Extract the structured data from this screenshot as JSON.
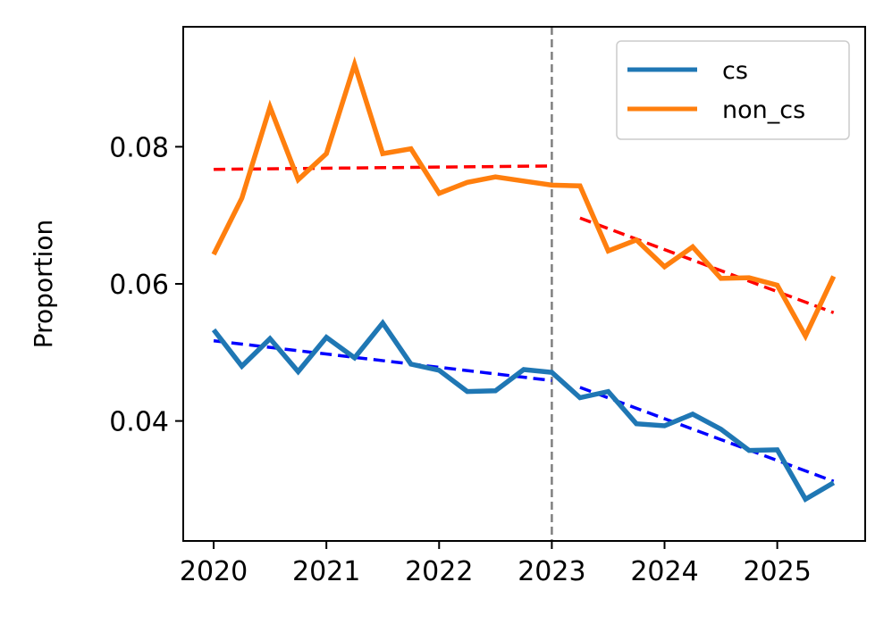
{
  "chart_data": {
    "type": "line",
    "title": "",
    "xlabel": "",
    "ylabel": "Proportion",
    "xlim": [
      2019.73,
      2025.78
    ],
    "ylim": [
      0.0225,
      0.0975
    ],
    "x_ticks": [
      2020,
      2021,
      2022,
      2023,
      2024,
      2025
    ],
    "x_tick_labels": [
      "2020",
      "2021",
      "2022",
      "2023",
      "2024",
      "2025"
    ],
    "y_ticks": [
      0.04,
      0.06,
      0.08
    ],
    "y_tick_labels": [
      "0.04",
      "0.06",
      "0.08"
    ],
    "grid": false,
    "legend_position": "top-right",
    "vline": {
      "x": 2023,
      "color": "#808080",
      "style": "dashed"
    },
    "series": [
      {
        "name": "cs",
        "color": "#1f77b4",
        "x": [
          2020,
          2020.25,
          2020.5,
          2020.75,
          2021,
          2021.25,
          2021.5,
          2021.75,
          2022,
          2022.25,
          2022.5,
          2022.75,
          2023,
          2023.25,
          2023.5,
          2023.75,
          2024,
          2024.25,
          2024.5,
          2024.75,
          2025,
          2025.25,
          2025.5
        ],
        "values": [
          0.0533,
          0.048,
          0.052,
          0.0472,
          0.0522,
          0.0492,
          0.0543,
          0.0483,
          0.0474,
          0.0443,
          0.0444,
          0.0475,
          0.0471,
          0.0434,
          0.0443,
          0.0396,
          0.0393,
          0.041,
          0.0388,
          0.0357,
          0.0358,
          0.0286,
          0.031
        ]
      },
      {
        "name": "non_cs",
        "color": "#ff7f0e",
        "x": [
          2020,
          2020.25,
          2020.5,
          2020.75,
          2021,
          2021.25,
          2021.5,
          2021.75,
          2022,
          2022.25,
          2022.5,
          2022.75,
          2023,
          2023.25,
          2023.5,
          2023.75,
          2024,
          2024.25,
          2024.5,
          2024.75,
          2025,
          2025.25,
          2025.5
        ],
        "values": [
          0.0643,
          0.0725,
          0.0858,
          0.0752,
          0.079,
          0.092,
          0.079,
          0.0797,
          0.0732,
          0.0748,
          0.0756,
          0.075,
          0.0744,
          0.0743,
          0.0648,
          0.0664,
          0.0625,
          0.0654,
          0.0608,
          0.0609,
          0.0598,
          0.0524,
          0.0611
        ]
      }
    ],
    "trend_lines": [
      {
        "name": "cs-pre-trend",
        "color": "#0000ff",
        "x": [
          2020,
          2023
        ],
        "values": [
          0.0517,
          0.0459
        ]
      },
      {
        "name": "cs-post-trend",
        "color": "#0000ff",
        "x": [
          2023.25,
          2025.5
        ],
        "values": [
          0.0449,
          0.0312
        ]
      },
      {
        "name": "non-cs-pre-trend",
        "color": "#ff0000",
        "x": [
          2020,
          2023
        ],
        "values": [
          0.0767,
          0.0772
        ]
      },
      {
        "name": "non-cs-post-trend",
        "color": "#ff0000",
        "x": [
          2023.25,
          2025.5
        ],
        "values": [
          0.0696,
          0.0558
        ]
      }
    ]
  }
}
